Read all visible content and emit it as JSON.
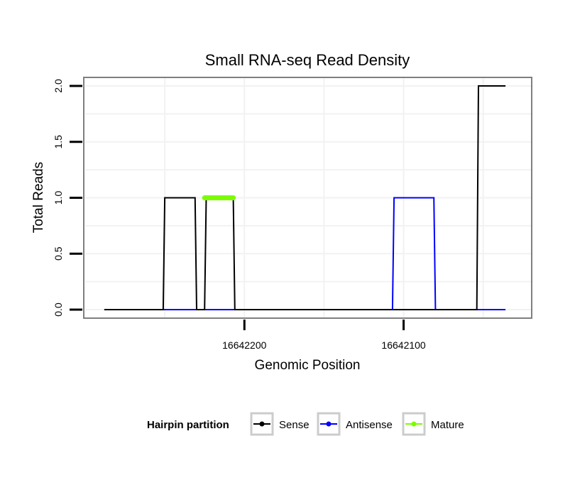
{
  "chart_data": {
    "type": "line",
    "title": "Small RNA-seq Read Density",
    "xlabel": "Genomic Position",
    "ylabel": "Total Reads",
    "xlim": [
      16642300,
      16642020
    ],
    "ylim": [
      -0.07,
      2.07
    ],
    "x_reversed": true,
    "x_ticks": [
      16642200,
      16642100
    ],
    "x_tick_labels": [
      "16642200",
      "16642100"
    ],
    "y_ticks": [
      0.0,
      0.5,
      1.0,
      1.5,
      2.0
    ],
    "y_tick_labels": [
      "0.0",
      "0.5",
      "1.0",
      "1.5",
      "2.0"
    ],
    "grid": true,
    "legend_position": "bottom",
    "legend_title": "Hairpin partition",
    "series": [
      {
        "name": "Sense",
        "color": "#000000",
        "x": [
          16642288,
          16642251,
          16642250,
          16642231,
          16642230,
          16642225,
          16642224,
          16642207,
          16642206,
          16642071,
          16642070,
          16642054,
          16642053,
          16642036
        ],
        "y": [
          0,
          0,
          1,
          1,
          0,
          0,
          1,
          1,
          0,
          0,
          0,
          0,
          2,
          2
        ]
      },
      {
        "name": "Antisense",
        "color": "#0000ff",
        "x": [
          16642288,
          16642107,
          16642106,
          16642081,
          16642080,
          16642036
        ],
        "y": [
          0,
          0,
          1,
          1,
          0,
          0
        ]
      },
      {
        "name": "Mature",
        "color": "#7cfc00",
        "x": [
          16642225,
          16642207
        ],
        "y": [
          1,
          1
        ]
      }
    ]
  }
}
